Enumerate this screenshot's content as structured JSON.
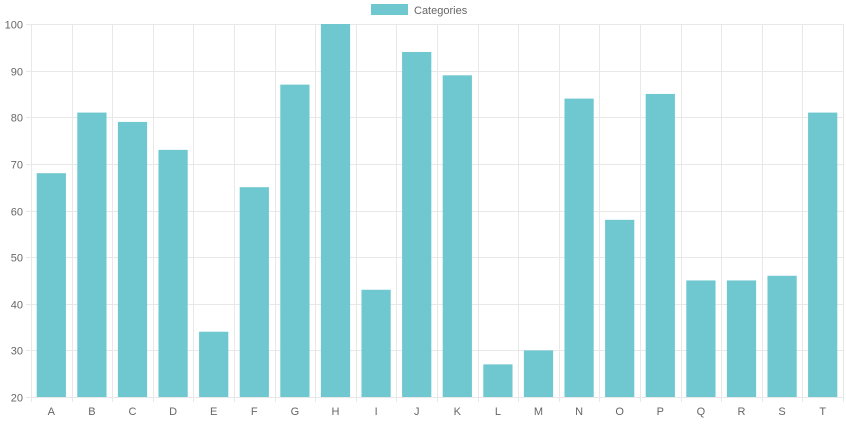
{
  "chart_data": {
    "type": "bar",
    "categories": [
      "A",
      "B",
      "C",
      "D",
      "E",
      "F",
      "G",
      "H",
      "I",
      "J",
      "K",
      "L",
      "M",
      "N",
      "O",
      "P",
      "Q",
      "R",
      "S",
      "T"
    ],
    "series": [
      {
        "name": "Categories",
        "values": [
          68,
          81,
          79,
          73,
          34,
          65,
          87,
          100,
          43,
          94,
          89,
          27,
          30,
          84,
          58,
          85,
          45,
          45,
          46,
          81
        ]
      }
    ],
    "ylim": [
      20,
      100
    ],
    "yticks": [
      20,
      30,
      40,
      50,
      60,
      70,
      80,
      90,
      100
    ],
    "grid": true,
    "legend_position": "top",
    "colors": {
      "bar_fill": "#6fc8d0",
      "grid": "#e8e8e8",
      "axis_text": "#666666"
    }
  }
}
